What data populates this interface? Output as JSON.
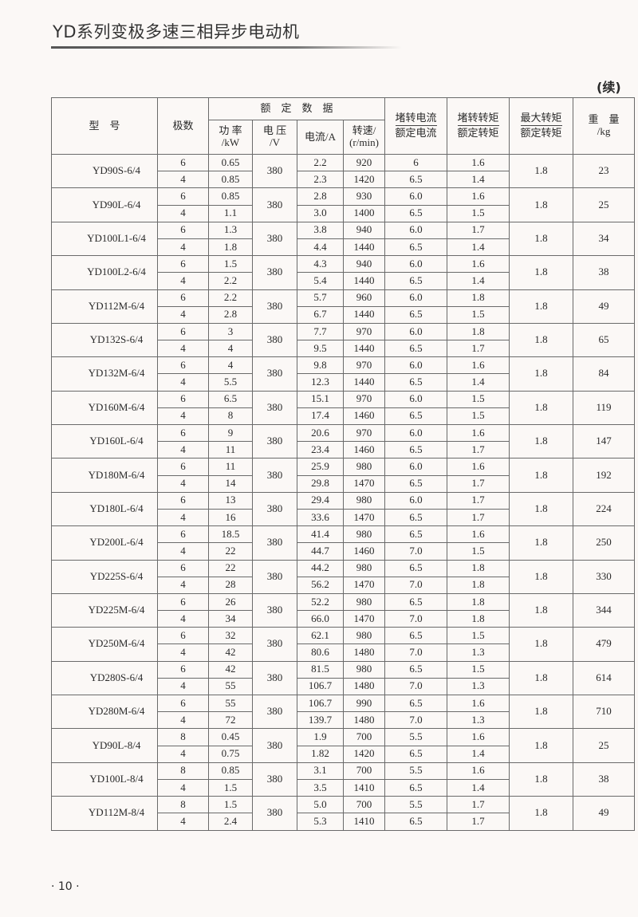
{
  "header": {
    "title": "YD系列变极多速三相异步电动机",
    "continued": "(续)"
  },
  "table": {
    "columns": {
      "model": "型　号",
      "poles": "极数",
      "rated_data": "额　定　数　据",
      "power": [
        "功 率",
        "/kW"
      ],
      "voltage": [
        "电 压",
        "/V"
      ],
      "current": "电流/A",
      "speed": [
        "转速/",
        "(r/min)"
      ],
      "locked_current": [
        "堵转电流",
        "额定电流"
      ],
      "locked_torque": [
        "堵转转矩",
        "额定转矩"
      ],
      "max_torque": [
        "最大转矩",
        "额定转矩"
      ],
      "weight": [
        "重　量",
        "/kg"
      ]
    },
    "motors": [
      {
        "model": "YD90S-6/4",
        "voltage": "380",
        "max_torque": "1.8",
        "weight": "23",
        "rows": [
          {
            "poles": "6",
            "power": "0.65",
            "current": "2.2",
            "speed": "920",
            "locked_current": "6",
            "locked_torque": "1.6"
          },
          {
            "poles": "4",
            "power": "0.85",
            "current": "2.3",
            "speed": "1420",
            "locked_current": "6.5",
            "locked_torque": "1.4"
          }
        ]
      },
      {
        "model": "YD90L-6/4",
        "voltage": "380",
        "max_torque": "1.8",
        "weight": "25",
        "rows": [
          {
            "poles": "6",
            "power": "0.85",
            "current": "2.8",
            "speed": "930",
            "locked_current": "6.0",
            "locked_torque": "1.6"
          },
          {
            "poles": "4",
            "power": "1.1",
            "current": "3.0",
            "speed": "1400",
            "locked_current": "6.5",
            "locked_torque": "1.5"
          }
        ]
      },
      {
        "model": "YD100L1-6/4",
        "voltage": "380",
        "max_torque": "1.8",
        "weight": "34",
        "rows": [
          {
            "poles": "6",
            "power": "1.3",
            "current": "3.8",
            "speed": "940",
            "locked_current": "6.0",
            "locked_torque": "1.7"
          },
          {
            "poles": "4",
            "power": "1.8",
            "current": "4.4",
            "speed": "1440",
            "locked_current": "6.5",
            "locked_torque": "1.4"
          }
        ]
      },
      {
        "model": "YD100L2-6/4",
        "voltage": "380",
        "max_torque": "1.8",
        "weight": "38",
        "rows": [
          {
            "poles": "6",
            "power": "1.5",
            "current": "4.3",
            "speed": "940",
            "locked_current": "6.0",
            "locked_torque": "1.6"
          },
          {
            "poles": "4",
            "power": "2.2",
            "current": "5.4",
            "speed": "1440",
            "locked_current": "6.5",
            "locked_torque": "1.4"
          }
        ]
      },
      {
        "model": "YD112M-6/4",
        "voltage": "380",
        "max_torque": "1.8",
        "weight": "49",
        "rows": [
          {
            "poles": "6",
            "power": "2.2",
            "current": "5.7",
            "speed": "960",
            "locked_current": "6.0",
            "locked_torque": "1.8"
          },
          {
            "poles": "4",
            "power": "2.8",
            "current": "6.7",
            "speed": "1440",
            "locked_current": "6.5",
            "locked_torque": "1.5"
          }
        ]
      },
      {
        "model": "YD132S-6/4",
        "voltage": "380",
        "max_torque": "1.8",
        "weight": "65",
        "rows": [
          {
            "poles": "6",
            "power": "3",
            "current": "7.7",
            "speed": "970",
            "locked_current": "6.0",
            "locked_torque": "1.8"
          },
          {
            "poles": "4",
            "power": "4",
            "current": "9.5",
            "speed": "1440",
            "locked_current": "6.5",
            "locked_torque": "1.7"
          }
        ]
      },
      {
        "model": "YD132M-6/4",
        "voltage": "380",
        "max_torque": "1.8",
        "weight": "84",
        "rows": [
          {
            "poles": "6",
            "power": "4",
            "current": "9.8",
            "speed": "970",
            "locked_current": "6.0",
            "locked_torque": "1.6"
          },
          {
            "poles": "4",
            "power": "5.5",
            "current": "12.3",
            "speed": "1440",
            "locked_current": "6.5",
            "locked_torque": "1.4"
          }
        ]
      },
      {
        "model": "YD160M-6/4",
        "voltage": "380",
        "max_torque": "1.8",
        "weight": "119",
        "rows": [
          {
            "poles": "6",
            "power": "6.5",
            "current": "15.1",
            "speed": "970",
            "locked_current": "6.0",
            "locked_torque": "1.5"
          },
          {
            "poles": "4",
            "power": "8",
            "current": "17.4",
            "speed": "1460",
            "locked_current": "6.5",
            "locked_torque": "1.5"
          }
        ]
      },
      {
        "model": "YD160L-6/4",
        "voltage": "380",
        "max_torque": "1.8",
        "weight": "147",
        "rows": [
          {
            "poles": "6",
            "power": "9",
            "current": "20.6",
            "speed": "970",
            "locked_current": "6.0",
            "locked_torque": "1.6"
          },
          {
            "poles": "4",
            "power": "11",
            "current": "23.4",
            "speed": "1460",
            "locked_current": "6.5",
            "locked_torque": "1.7"
          }
        ]
      },
      {
        "model": "YD180M-6/4",
        "voltage": "380",
        "max_torque": "1.8",
        "weight": "192",
        "rows": [
          {
            "poles": "6",
            "power": "11",
            "current": "25.9",
            "speed": "980",
            "locked_current": "6.0",
            "locked_torque": "1.6"
          },
          {
            "poles": "4",
            "power": "14",
            "current": "29.8",
            "speed": "1470",
            "locked_current": "6.5",
            "locked_torque": "1.7"
          }
        ]
      },
      {
        "model": "YD180L-6/4",
        "voltage": "380",
        "max_torque": "1.8",
        "weight": "224",
        "rows": [
          {
            "poles": "6",
            "power": "13",
            "current": "29.4",
            "speed": "980",
            "locked_current": "6.0",
            "locked_torque": "1.7"
          },
          {
            "poles": "4",
            "power": "16",
            "current": "33.6",
            "speed": "1470",
            "locked_current": "6.5",
            "locked_torque": "1.7"
          }
        ]
      },
      {
        "model": "YD200L-6/4",
        "voltage": "380",
        "max_torque": "1.8",
        "weight": "250",
        "rows": [
          {
            "poles": "6",
            "power": "18.5",
            "current": "41.4",
            "speed": "980",
            "locked_current": "6.5",
            "locked_torque": "1.6"
          },
          {
            "poles": "4",
            "power": "22",
            "current": "44.7",
            "speed": "1460",
            "locked_current": "7.0",
            "locked_torque": "1.5"
          }
        ]
      },
      {
        "model": "YD225S-6/4",
        "voltage": "380",
        "max_torque": "1.8",
        "weight": "330",
        "rows": [
          {
            "poles": "6",
            "power": "22",
            "current": "44.2",
            "speed": "980",
            "locked_current": "6.5",
            "locked_torque": "1.8"
          },
          {
            "poles": "4",
            "power": "28",
            "current": "56.2",
            "speed": "1470",
            "locked_current": "7.0",
            "locked_torque": "1.8"
          }
        ]
      },
      {
        "model": "YD225M-6/4",
        "voltage": "380",
        "max_torque": "1.8",
        "weight": "344",
        "rows": [
          {
            "poles": "6",
            "power": "26",
            "current": "52.2",
            "speed": "980",
            "locked_current": "6.5",
            "locked_torque": "1.8"
          },
          {
            "poles": "4",
            "power": "34",
            "current": "66.0",
            "speed": "1470",
            "locked_current": "7.0",
            "locked_torque": "1.8"
          }
        ]
      },
      {
        "model": "YD250M-6/4",
        "voltage": "380",
        "max_torque": "1.8",
        "weight": "479",
        "rows": [
          {
            "poles": "6",
            "power": "32",
            "current": "62.1",
            "speed": "980",
            "locked_current": "6.5",
            "locked_torque": "1.5"
          },
          {
            "poles": "4",
            "power": "42",
            "current": "80.6",
            "speed": "1480",
            "locked_current": "7.0",
            "locked_torque": "1.3"
          }
        ]
      },
      {
        "model": "YD280S-6/4",
        "voltage": "380",
        "max_torque": "1.8",
        "weight": "614",
        "rows": [
          {
            "poles": "6",
            "power": "42",
            "current": "81.5",
            "speed": "980",
            "locked_current": "6.5",
            "locked_torque": "1.5"
          },
          {
            "poles": "4",
            "power": "55",
            "current": "106.7",
            "speed": "1480",
            "locked_current": "7.0",
            "locked_torque": "1.3"
          }
        ]
      },
      {
        "model": "YD280M-6/4",
        "voltage": "380",
        "max_torque": "1.8",
        "weight": "710",
        "rows": [
          {
            "poles": "6",
            "power": "55",
            "current": "106.7",
            "speed": "990",
            "locked_current": "6.5",
            "locked_torque": "1.6"
          },
          {
            "poles": "4",
            "power": "72",
            "current": "139.7",
            "speed": "1480",
            "locked_current": "7.0",
            "locked_torque": "1.3"
          }
        ]
      },
      {
        "model": "YD90L-8/4",
        "voltage": "380",
        "max_torque": "1.8",
        "weight": "25",
        "rows": [
          {
            "poles": "8",
            "power": "0.45",
            "current": "1.9",
            "speed": "700",
            "locked_current": "5.5",
            "locked_torque": "1.6"
          },
          {
            "poles": "4",
            "power": "0.75",
            "current": "1.82",
            "speed": "1420",
            "locked_current": "6.5",
            "locked_torque": "1.4"
          }
        ]
      },
      {
        "model": "YD100L-8/4",
        "voltage": "380",
        "max_torque": "1.8",
        "weight": "38",
        "rows": [
          {
            "poles": "8",
            "power": "0.85",
            "current": "3.1",
            "speed": "700",
            "locked_current": "5.5",
            "locked_torque": "1.6"
          },
          {
            "poles": "4",
            "power": "1.5",
            "current": "3.5",
            "speed": "1410",
            "locked_current": "6.5",
            "locked_torque": "1.4"
          }
        ]
      },
      {
        "model": "YD112M-8/4",
        "voltage": "380",
        "max_torque": "1.8",
        "weight": "49",
        "rows": [
          {
            "poles": "8",
            "power": "1.5",
            "current": "5.0",
            "speed": "700",
            "locked_current": "5.5",
            "locked_torque": "1.7"
          },
          {
            "poles": "4",
            "power": "2.4",
            "current": "5.3",
            "speed": "1410",
            "locked_current": "6.5",
            "locked_torque": "1.7"
          }
        ]
      }
    ]
  },
  "footer": {
    "page_number": "· 10 ·"
  }
}
